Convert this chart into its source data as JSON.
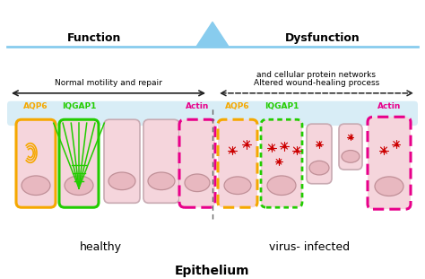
{
  "title": "Epithelium",
  "healthy_label": "healthy",
  "infected_label": "virus- infected",
  "bg_color": "#ffffff",
  "cell_fill": "#f5d5dc",
  "cell_edge": "#c8aab2",
  "nucleus_fill": "#e8b8c0",
  "nucleus_edge": "#c09098",
  "aqp6_color": "#f5a800",
  "iqgap1_color": "#22cc00",
  "actin_color": "#e8008a",
  "virus_color": "#cc0000",
  "blue_bar_color": "#b8dff0",
  "arrow_color": "#222222",
  "dashed_line_color": "#666666",
  "function_text": "Function",
  "dysfunction_text": "Dysfunction",
  "normal_text": "Normal motility and repair",
  "altered_text1": "Altered wound-healing process",
  "altered_text2": "and cellular protein networks",
  "aqp6_text": "AQP6",
  "iqgap1_text": "IQGAP1",
  "actin_text": "Actin",
  "triangle_color": "#88ccee",
  "scale_line_color": "#88ccee"
}
